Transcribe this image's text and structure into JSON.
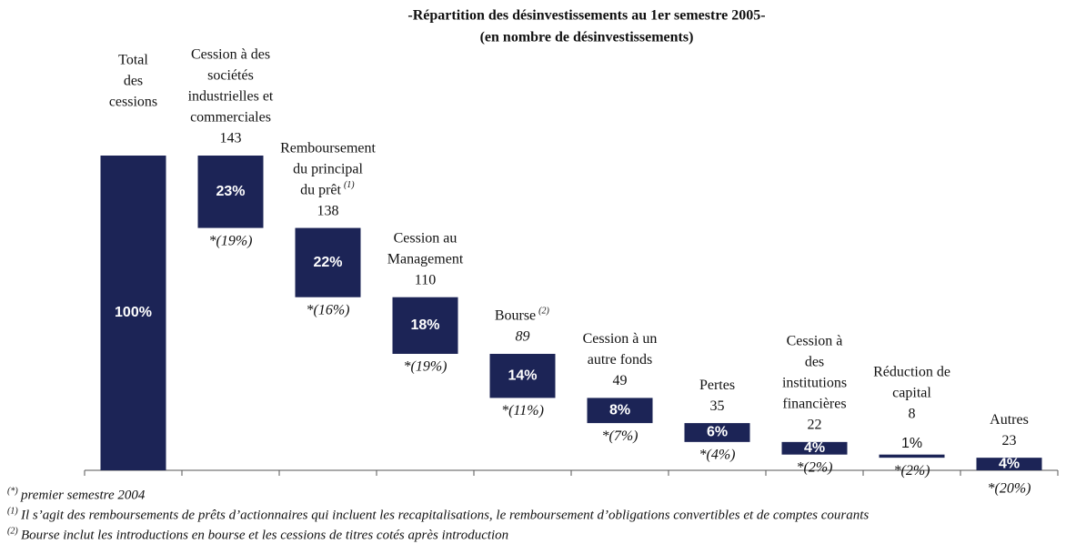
{
  "chart_data": {
    "type": "waterfall",
    "title": "-Répartition des désinvestissements au 1er semestre 2005-",
    "subtitle": "(en nombre de désinvestissements)",
    "color": "#1c2456",
    "categories": [
      [
        "Total",
        "des",
        "cessions"
      ],
      [
        "Cession à des",
        "sociétés",
        "industrielles et",
        "commerciales"
      ],
      [
        "Remboursement",
        "du principal",
        "du prêt"
      ],
      [
        "Cession au",
        "Management"
      ],
      [
        "Bourse"
      ],
      [
        "Cession à un",
        "autre fonds"
      ],
      [
        "Pertes"
      ],
      [
        "Cession à",
        "des",
        "institutions",
        "financières"
      ],
      [
        "Réduction de",
        "capital"
      ],
      [
        "Autres"
      ]
    ],
    "category_notes": [
      null,
      null,
      "(1)",
      null,
      "(2)",
      null,
      null,
      null,
      null,
      null
    ],
    "counts": [
      null,
      143,
      138,
      110,
      89,
      49,
      35,
      22,
      8,
      23
    ],
    "values": [
      100,
      23,
      22,
      18,
      14,
      8,
      6,
      4,
      1,
      4
    ],
    "value_labels": [
      "100%",
      "23%",
      "22%",
      "18%",
      "14%",
      "8%",
      "6%",
      "4%",
      "1%",
      "4%"
    ],
    "previous_labels": [
      null,
      "*(19%)",
      "*(16%)",
      "*(19%)",
      "*(11%)",
      "*(7%)",
      "*(4%)",
      "*(2%)",
      "*(2%)",
      "*(20%)"
    ],
    "ylim": [
      0,
      100
    ],
    "footnotes": [
      {
        "mark": "(*)",
        "text": " premier semestre 2004"
      },
      {
        "mark": "(1)",
        "text": " Il s’agit des remboursements de prêts d’actionnaires qui incluent les recapitalisations, le remboursement d’obligations convertibles et de comptes courants"
      },
      {
        "mark": "(2)",
        "text": " Bourse inclut les introductions en bourse et les cessions de titres cotés après introduction"
      }
    ]
  }
}
